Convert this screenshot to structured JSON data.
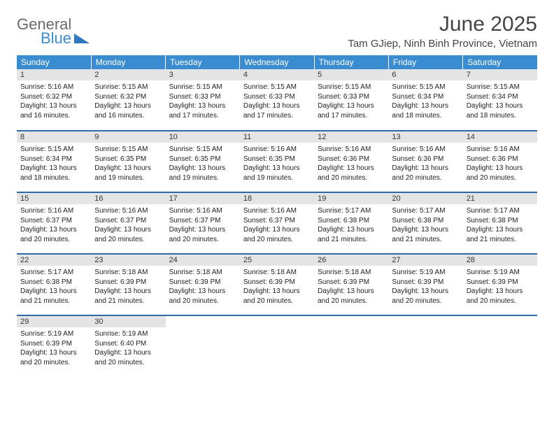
{
  "brand": {
    "part1": "General",
    "part2": "Blue"
  },
  "title": "June 2025",
  "location": "Tam GJiep, Ninh Binh Province, Vietnam",
  "colors": {
    "header_bg": "#3a8cd0",
    "header_text": "#ffffff",
    "row_divider": "#2f6aa8",
    "daynum_bg": "#e4e4e4",
    "text": "#222222"
  },
  "weekdays": [
    "Sunday",
    "Monday",
    "Tuesday",
    "Wednesday",
    "Thursday",
    "Friday",
    "Saturday"
  ],
  "weeks": [
    [
      {
        "n": "1",
        "sr": "Sunrise: 5:16 AM",
        "ss": "Sunset: 6:32 PM",
        "d1": "Daylight: 13 hours",
        "d2": "and 16 minutes."
      },
      {
        "n": "2",
        "sr": "Sunrise: 5:15 AM",
        "ss": "Sunset: 6:32 PM",
        "d1": "Daylight: 13 hours",
        "d2": "and 16 minutes."
      },
      {
        "n": "3",
        "sr": "Sunrise: 5:15 AM",
        "ss": "Sunset: 6:33 PM",
        "d1": "Daylight: 13 hours",
        "d2": "and 17 minutes."
      },
      {
        "n": "4",
        "sr": "Sunrise: 5:15 AM",
        "ss": "Sunset: 6:33 PM",
        "d1": "Daylight: 13 hours",
        "d2": "and 17 minutes."
      },
      {
        "n": "5",
        "sr": "Sunrise: 5:15 AM",
        "ss": "Sunset: 6:33 PM",
        "d1": "Daylight: 13 hours",
        "d2": "and 17 minutes."
      },
      {
        "n": "6",
        "sr": "Sunrise: 5:15 AM",
        "ss": "Sunset: 6:34 PM",
        "d1": "Daylight: 13 hours",
        "d2": "and 18 minutes."
      },
      {
        "n": "7",
        "sr": "Sunrise: 5:15 AM",
        "ss": "Sunset: 6:34 PM",
        "d1": "Daylight: 13 hours",
        "d2": "and 18 minutes."
      }
    ],
    [
      {
        "n": "8",
        "sr": "Sunrise: 5:15 AM",
        "ss": "Sunset: 6:34 PM",
        "d1": "Daylight: 13 hours",
        "d2": "and 18 minutes."
      },
      {
        "n": "9",
        "sr": "Sunrise: 5:15 AM",
        "ss": "Sunset: 6:35 PM",
        "d1": "Daylight: 13 hours",
        "d2": "and 19 minutes."
      },
      {
        "n": "10",
        "sr": "Sunrise: 5:15 AM",
        "ss": "Sunset: 6:35 PM",
        "d1": "Daylight: 13 hours",
        "d2": "and 19 minutes."
      },
      {
        "n": "11",
        "sr": "Sunrise: 5:16 AM",
        "ss": "Sunset: 6:35 PM",
        "d1": "Daylight: 13 hours",
        "d2": "and 19 minutes."
      },
      {
        "n": "12",
        "sr": "Sunrise: 5:16 AM",
        "ss": "Sunset: 6:36 PM",
        "d1": "Daylight: 13 hours",
        "d2": "and 20 minutes."
      },
      {
        "n": "13",
        "sr": "Sunrise: 5:16 AM",
        "ss": "Sunset: 6:36 PM",
        "d1": "Daylight: 13 hours",
        "d2": "and 20 minutes."
      },
      {
        "n": "14",
        "sr": "Sunrise: 5:16 AM",
        "ss": "Sunset: 6:36 PM",
        "d1": "Daylight: 13 hours",
        "d2": "and 20 minutes."
      }
    ],
    [
      {
        "n": "15",
        "sr": "Sunrise: 5:16 AM",
        "ss": "Sunset: 6:37 PM",
        "d1": "Daylight: 13 hours",
        "d2": "and 20 minutes."
      },
      {
        "n": "16",
        "sr": "Sunrise: 5:16 AM",
        "ss": "Sunset: 6:37 PM",
        "d1": "Daylight: 13 hours",
        "d2": "and 20 minutes."
      },
      {
        "n": "17",
        "sr": "Sunrise: 5:16 AM",
        "ss": "Sunset: 6:37 PM",
        "d1": "Daylight: 13 hours",
        "d2": "and 20 minutes."
      },
      {
        "n": "18",
        "sr": "Sunrise: 5:16 AM",
        "ss": "Sunset: 6:37 PM",
        "d1": "Daylight: 13 hours",
        "d2": "and 20 minutes."
      },
      {
        "n": "19",
        "sr": "Sunrise: 5:17 AM",
        "ss": "Sunset: 6:38 PM",
        "d1": "Daylight: 13 hours",
        "d2": "and 21 minutes."
      },
      {
        "n": "20",
        "sr": "Sunrise: 5:17 AM",
        "ss": "Sunset: 6:38 PM",
        "d1": "Daylight: 13 hours",
        "d2": "and 21 minutes."
      },
      {
        "n": "21",
        "sr": "Sunrise: 5:17 AM",
        "ss": "Sunset: 6:38 PM",
        "d1": "Daylight: 13 hours",
        "d2": "and 21 minutes."
      }
    ],
    [
      {
        "n": "22",
        "sr": "Sunrise: 5:17 AM",
        "ss": "Sunset: 6:38 PM",
        "d1": "Daylight: 13 hours",
        "d2": "and 21 minutes."
      },
      {
        "n": "23",
        "sr": "Sunrise: 5:18 AM",
        "ss": "Sunset: 6:39 PM",
        "d1": "Daylight: 13 hours",
        "d2": "and 21 minutes."
      },
      {
        "n": "24",
        "sr": "Sunrise: 5:18 AM",
        "ss": "Sunset: 6:39 PM",
        "d1": "Daylight: 13 hours",
        "d2": "and 20 minutes."
      },
      {
        "n": "25",
        "sr": "Sunrise: 5:18 AM",
        "ss": "Sunset: 6:39 PM",
        "d1": "Daylight: 13 hours",
        "d2": "and 20 minutes."
      },
      {
        "n": "26",
        "sr": "Sunrise: 5:18 AM",
        "ss": "Sunset: 6:39 PM",
        "d1": "Daylight: 13 hours",
        "d2": "and 20 minutes."
      },
      {
        "n": "27",
        "sr": "Sunrise: 5:19 AM",
        "ss": "Sunset: 6:39 PM",
        "d1": "Daylight: 13 hours",
        "d2": "and 20 minutes."
      },
      {
        "n": "28",
        "sr": "Sunrise: 5:19 AM",
        "ss": "Sunset: 6:39 PM",
        "d1": "Daylight: 13 hours",
        "d2": "and 20 minutes."
      }
    ],
    [
      {
        "n": "29",
        "sr": "Sunrise: 5:19 AM",
        "ss": "Sunset: 6:39 PM",
        "d1": "Daylight: 13 hours",
        "d2": "and 20 minutes."
      },
      {
        "n": "30",
        "sr": "Sunrise: 5:19 AM",
        "ss": "Sunset: 6:40 PM",
        "d1": "Daylight: 13 hours",
        "d2": "and 20 minutes."
      },
      null,
      null,
      null,
      null,
      null
    ]
  ]
}
